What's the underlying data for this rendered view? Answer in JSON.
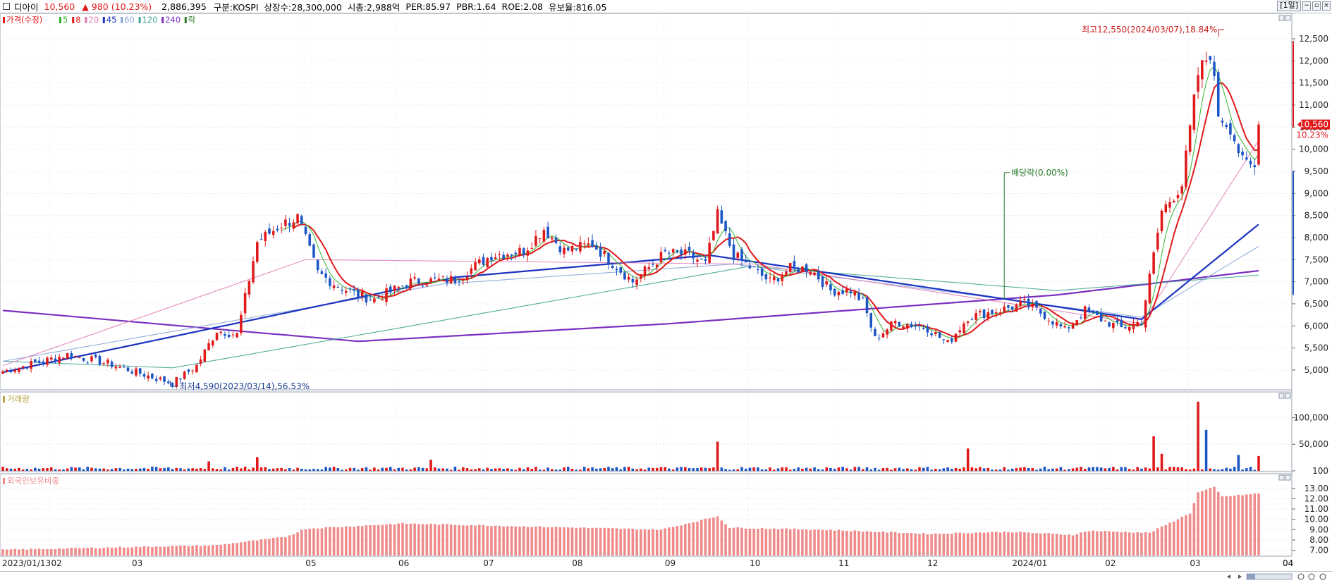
{
  "header": {
    "stock_name": "디아이",
    "price": "10,560",
    "change_arrow": "▲",
    "change": "980",
    "change_pct": "(10.23%)",
    "volume": "2,886,395",
    "market": "구분:KOSPI",
    "shares": "상장수:28,300,000",
    "market_cap": "시총:2,988억",
    "per": "PER:85.97",
    "pbr": "PBR:1.64",
    "roe": "ROE:2.08",
    "reserve": "유보율:816.05",
    "period": "[1일]"
  },
  "colors": {
    "up": "#e0191b",
    "down": "#1c55c4",
    "ma5": "#2fb52f",
    "ma8": "#e0191b",
    "ma20": "#e078b4",
    "ma45": "#1a33c0",
    "ma60": "#8aa6d8",
    "ma120": "#3fa592",
    "ma240": "#7a2fc0",
    "foreign": "#f08a8a",
    "volume_label": "#b8a340"
  },
  "chart_data": [
    {
      "type": "candlestick",
      "panel": "price",
      "legend": [
        {
          "label": "가격(수정)",
          "color": "#e0191b"
        },
        {
          "label": "5",
          "color": "#2fb52f"
        },
        {
          "label": "8",
          "color": "#e0191b"
        },
        {
          "label": "20",
          "color": "#e078b4"
        },
        {
          "label": "45",
          "color": "#1a33c0"
        },
        {
          "label": "60",
          "color": "#8aa6d8"
        },
        {
          "label": "120",
          "color": "#3fa592"
        },
        {
          "label": "240",
          "color": "#7a2fc0"
        },
        {
          "label": "락",
          "color": "#2a7a2a"
        }
      ],
      "ylim": [
        4600,
        12900
      ],
      "yticks": [
        5000,
        5500,
        6000,
        6500,
        7000,
        7500,
        8000,
        8500,
        9000,
        9500,
        10000,
        10500,
        11000,
        11500,
        12000,
        12500
      ],
      "ytick_labels": [
        "5,000",
        "5,500",
        "6,000",
        "6,500",
        "7,000",
        "7,500",
        "8,000",
        "8,500",
        "9,000",
        "9,500",
        "10,000",
        "10,500",
        "11,000",
        "11,500",
        "12,000",
        "12,500"
      ],
      "x_labels": [
        "2023/01/13",
        "02",
        "03",
        "04",
        "05",
        "06",
        "07",
        "08",
        "09",
        "10",
        "11",
        "12",
        "2024/01",
        "02",
        "03",
        "04"
      ],
      "x_label_dates": [
        "2023-01-13",
        "2023-02-01",
        "2023-03-01",
        "2023-04-01",
        "2023-05-01",
        "2023-06-01",
        "2023-07-01",
        "2023-08-01",
        "2023-09-01",
        "2023-10-01",
        "2023-11-01",
        "2023-12-01",
        "2024-01-01",
        "2024-02-01",
        "2024-03-01",
        "2024-04-01"
      ],
      "date_range": [
        "2023-01-13",
        "2024-03-25"
      ],
      "close_anchors": [
        [
          "2023-01-13",
          4970
        ],
        [
          "2023-02-06",
          5350
        ],
        [
          "2023-02-20",
          5150
        ],
        [
          "2023-03-14",
          4700
        ],
        [
          "2023-03-22",
          5100
        ],
        [
          "2023-03-29",
          5900
        ],
        [
          "2023-04-05",
          5800
        ],
        [
          "2023-04-12",
          7900
        ],
        [
          "2023-04-20",
          8300
        ],
        [
          "2023-04-26",
          8450
        ],
        [
          "2023-05-03",
          7200
        ],
        [
          "2023-05-10",
          6900
        ],
        [
          "2023-05-17",
          6700
        ],
        [
          "2023-05-23",
          6600
        ],
        [
          "2023-06-05",
          7000
        ],
        [
          "2023-06-20",
          7050
        ],
        [
          "2023-07-03",
          7600
        ],
        [
          "2023-07-13",
          7700
        ],
        [
          "2023-07-20",
          8200
        ],
        [
          "2023-07-27",
          7700
        ],
        [
          "2023-08-07",
          7850
        ],
        [
          "2023-08-21",
          7000
        ],
        [
          "2023-08-31",
          7650
        ],
        [
          "2023-09-08",
          7600
        ],
        [
          "2023-09-14",
          7400
        ],
        [
          "2023-09-19",
          8500
        ],
        [
          "2023-09-25",
          7600
        ],
        [
          "2023-10-06",
          7000
        ],
        [
          "2023-10-13",
          7300
        ],
        [
          "2023-10-20",
          7300
        ],
        [
          "2023-10-27",
          6800
        ],
        [
          "2023-11-03",
          6800
        ],
        [
          "2023-11-08",
          6550
        ],
        [
          "2023-11-13",
          5700
        ],
        [
          "2023-11-20",
          6100
        ],
        [
          "2023-11-30",
          5950
        ],
        [
          "2023-12-07",
          5600
        ],
        [
          "2023-12-14",
          6200
        ],
        [
          "2023-12-21",
          6300
        ],
        [
          "2024-01-03",
          6500
        ],
        [
          "2024-01-10",
          6250
        ],
        [
          "2024-01-17",
          5900
        ],
        [
          "2024-01-24",
          6350
        ],
        [
          "2024-01-31",
          6100
        ],
        [
          "2024-02-06",
          5950
        ],
        [
          "2024-02-13",
          6100
        ],
        [
          "2024-02-16",
          7600
        ],
        [
          "2024-02-20",
          8600
        ],
        [
          "2024-02-27",
          9200
        ],
        [
          "2024-03-04",
          11700
        ],
        [
          "2024-03-07",
          12200
        ],
        [
          "2024-03-11",
          10800
        ],
        [
          "2024-03-14",
          10500
        ],
        [
          "2024-03-19",
          9700
        ],
        [
          "2024-03-22",
          9580
        ],
        [
          "2024-03-25",
          10560
        ]
      ],
      "moving_average_anchors": {
        "ma5": [
          [
            "2023-04-20",
            8100
          ],
          [
            "2023-05-10",
            7000
          ],
          [
            "2024-02-27",
            8700
          ],
          [
            "2024-03-11",
            11400
          ],
          [
            "2024-03-25",
            9800
          ]
        ],
        "ma8": [
          [
            "2023-04-25",
            8050
          ],
          [
            "2023-05-12",
            6900
          ],
          [
            "2024-02-29",
            8600
          ],
          [
            "2024-03-13",
            11300
          ],
          [
            "2024-03-25",
            9800
          ]
        ],
        "ma20": [
          [
            "2023-01-13",
            5100
          ],
          [
            "2023-04-28",
            7500
          ],
          [
            "2023-10-02",
            7400
          ],
          [
            "2024-02-13",
            6050
          ],
          [
            "2024-03-25",
            10200
          ]
        ],
        "ma45": [
          [
            "2023-01-13",
            4950
          ],
          [
            "2023-06-20",
            7100
          ],
          [
            "2023-09-15",
            7600
          ],
          [
            "2024-02-13",
            6150
          ],
          [
            "2024-03-25",
            8300
          ]
        ],
        "ma60": [
          [
            "2023-01-13",
            5200
          ],
          [
            "2023-06-15",
            6950
          ],
          [
            "2023-09-25",
            7400
          ],
          [
            "2024-02-13",
            6200
          ],
          [
            "2024-03-25",
            7800
          ]
        ],
        "ma120": [
          [
            "2023-01-13",
            5200
          ],
          [
            "2023-03-14",
            5050
          ],
          [
            "2023-09-29",
            7350
          ],
          [
            "2024-01-15",
            6800
          ],
          [
            "2024-03-25",
            7150
          ]
        ],
        "ma240": [
          [
            "2023-01-13",
            6350
          ],
          [
            "2023-05-17",
            5650
          ],
          [
            "2023-09-01",
            6050
          ],
          [
            "2024-01-15",
            6700
          ],
          [
            "2024-03-25",
            7250
          ]
        ]
      },
      "current_price_tag": {
        "price": "10,560",
        "pct": "10.23%"
      },
      "annotations": [
        {
          "text": "최고12,550(2024/03/07),18.84%",
          "date": "2024-03-07",
          "value": 12550,
          "color": "#c81e1e"
        },
        {
          "text": "최저4,590(2023/03/14),56.53%",
          "date": "2023-03-14",
          "value": 4590,
          "color": "#1c3f94"
        },
        {
          "text": "배당락(0.00%)",
          "date": "2023-12-27",
          "value": 6600,
          "label_value": 9470,
          "color": "#2a7a2a"
        }
      ]
    },
    {
      "type": "bar",
      "panel": "volume",
      "title": "거래량",
      "ylim": [
        0,
        135000
      ],
      "yticks": [
        100,
        50000,
        100000
      ],
      "ytick_labels": [
        "100",
        "50,000",
        "100,000"
      ],
      "base": 5000,
      "spikes": [
        [
          "2023-03-27",
          18000
        ],
        [
          "2023-04-12",
          26000
        ],
        [
          "2023-06-12",
          21000
        ],
        [
          "2023-09-19",
          55000
        ],
        [
          "2023-12-14",
          42000
        ],
        [
          "2024-02-16",
          65000
        ],
        [
          "2024-02-20",
          32000
        ],
        [
          "2024-03-04",
          130000
        ],
        [
          "2024-03-06",
          77000
        ],
        [
          "2024-03-18",
          30000
        ],
        [
          "2024-03-25",
          28000
        ]
      ]
    },
    {
      "type": "bar",
      "panel": "foreign",
      "title": "외국인보유비중",
      "ylim": [
        6.5,
        13.6
      ],
      "yticks": [
        7,
        8,
        9,
        10,
        11,
        12,
        13
      ],
      "ytick_labels": [
        "7.00",
        "8.00",
        "9.00",
        "10.00",
        "11.00",
        "12.00",
        "13.00"
      ],
      "anchors": [
        [
          "2023-01-13",
          7.05
        ],
        [
          "2023-02-15",
          7.25
        ],
        [
          "2023-03-29",
          7.5
        ],
        [
          "2023-04-21",
          8.3
        ],
        [
          "2023-04-28",
          9.1
        ],
        [
          "2023-06-01",
          9.6
        ],
        [
          "2023-07-03",
          9.4
        ],
        [
          "2023-08-30",
          9.0
        ],
        [
          "2023-09-19",
          10.3
        ],
        [
          "2023-09-22",
          9.2
        ],
        [
          "2023-10-25",
          9.0
        ],
        [
          "2023-12-01",
          8.6
        ],
        [
          "2023-12-28",
          8.8
        ],
        [
          "2024-01-19",
          8.5
        ],
        [
          "2024-01-25",
          8.9
        ],
        [
          "2024-02-15",
          8.7
        ],
        [
          "2024-02-29",
          10.6
        ],
        [
          "2024-03-04",
          12.6
        ],
        [
          "2024-03-08",
          13.1
        ],
        [
          "2024-03-12",
          12.2
        ],
        [
          "2024-03-25",
          12.5
        ]
      ]
    }
  ]
}
